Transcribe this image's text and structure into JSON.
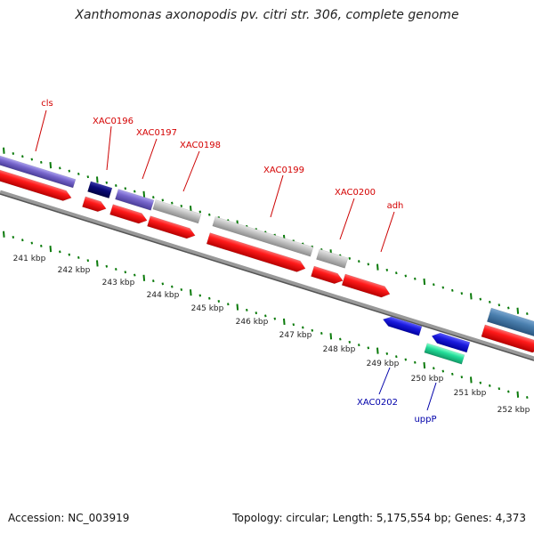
{
  "title": "Xanthomonas axonopodis pv. citri str. 306, complete genome",
  "footer": {
    "accession": "Accession: NC_003919",
    "summary": "Topology: circular; Length: 5,175,554 bp; Genes: 4,373"
  },
  "colors": {
    "forward_label": "#d40000",
    "reverse_label": "#0000aa",
    "tick": "#0a7a0a",
    "backbone": "#777777",
    "cds": "#ee1111",
    "gene_lavender": "#7766cc",
    "gene_navy": "#0a0a77",
    "gene_grey": "#bdbdbd",
    "gene_blue": "#1a1add",
    "gene_steel": "#4a7fae",
    "gene_green": "#22dd99"
  },
  "scale_labels": [
    "241 kbp",
    "242 kbp",
    "243 kbp",
    "244 kbp",
    "245 kbp",
    "246 kbp",
    "247 kbp",
    "248 kbp",
    "249 kbp",
    "250 kbp",
    "251 kbp",
    "252 kbp"
  ],
  "forward_genes": [
    "cls",
    "XAC0196",
    "XAC0197",
    "XAC0198",
    "XAC0199",
    "XAC0200",
    "adh"
  ],
  "reverse_genes": [
    "XAC0202",
    "uppP"
  ]
}
